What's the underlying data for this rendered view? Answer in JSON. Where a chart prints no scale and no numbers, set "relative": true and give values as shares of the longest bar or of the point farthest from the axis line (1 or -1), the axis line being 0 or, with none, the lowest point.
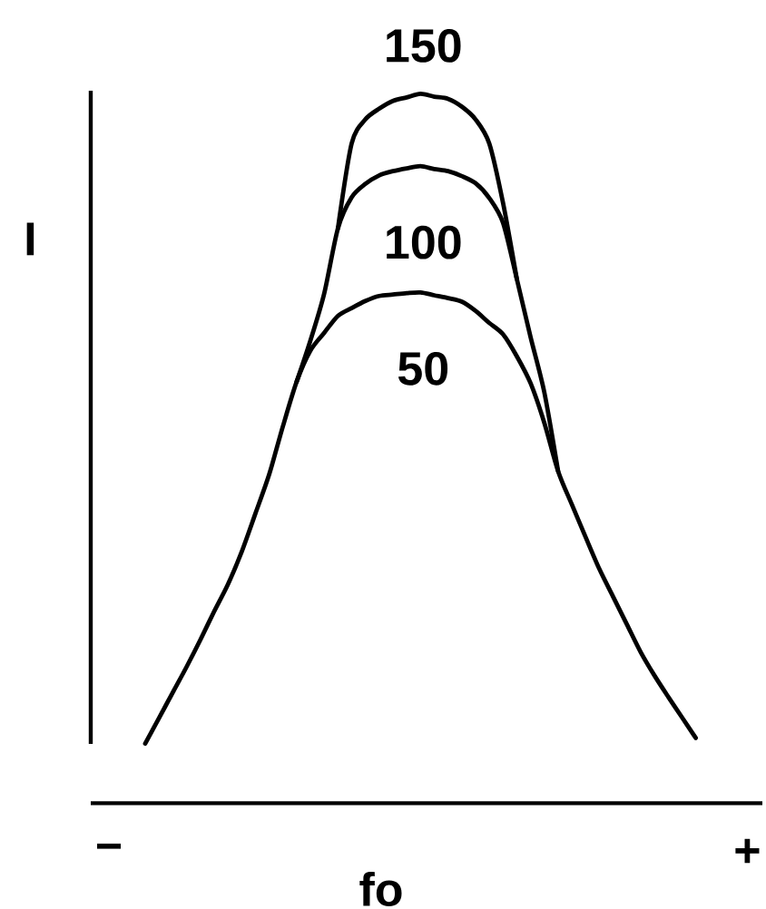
{
  "chart_data": {
    "type": "line",
    "relative": true,
    "xlabel": "fo",
    "ylabel": "I",
    "annotations": [
      "−",
      "+"
    ],
    "categories": [
      null,
      null,
      null,
      null,
      null,
      null,
      null,
      null,
      null,
      null,
      null,
      null,
      null,
      null,
      null,
      null,
      null,
      null,
      null,
      null,
      null,
      null,
      null,
      null,
      null,
      null,
      null,
      null,
      null,
      null,
      null,
      null,
      null,
      null,
      null,
      null,
      null,
      null,
      null,
      null,
      null
    ],
    "series": [
      {
        "name": "150",
        "color": "#000000",
        "values": [
          null,
          null,
          null,
          null,
          null,
          null,
          null,
          null,
          null,
          null,
          null,
          null,
          null,
          null,
          0.81,
          0.93,
          0.964,
          0.979,
          0.99,
          0.995,
          1.0,
          0.996,
          0.993,
          0.982,
          0.964,
          0.93,
          0.846,
          0.739,
          null,
          null,
          null,
          null,
          null,
          null,
          null,
          null,
          null,
          null,
          null,
          null,
          null
        ]
      },
      {
        "name": "100",
        "color": "#000000",
        "values": [
          null,
          null,
          null,
          null,
          null,
          null,
          null,
          null,
          null,
          null,
          null,
          0.594,
          0.652,
          0.718,
          0.81,
          0.854,
          0.873,
          0.885,
          0.891,
          0.895,
          0.898,
          0.894,
          0.891,
          0.884,
          0.874,
          0.853,
          0.818,
          0.739,
          0.657,
          0.579,
          0.468,
          null,
          null,
          null,
          null,
          null,
          null,
          null,
          null,
          null,
          null
        ]
      },
      {
        "name": "50",
        "color": "#000000",
        "values": [
          0.084,
          0.12,
          0.156,
          0.192,
          0.23,
          0.27,
          0.308,
          0.354,
          0.408,
          0.463,
          0.531,
          0.594,
          0.638,
          0.663,
          0.687,
          0.698,
          0.708,
          0.715,
          0.717,
          0.719,
          0.72,
          0.716,
          0.712,
          0.707,
          0.694,
          0.677,
          0.661,
          0.63,
          0.592,
          0.536,
          0.468,
          0.421,
          0.375,
          0.33,
          0.291,
          0.252,
          0.213,
          0.18,
          0.15,
          0.121,
          0.092
        ]
      }
    ]
  }
}
